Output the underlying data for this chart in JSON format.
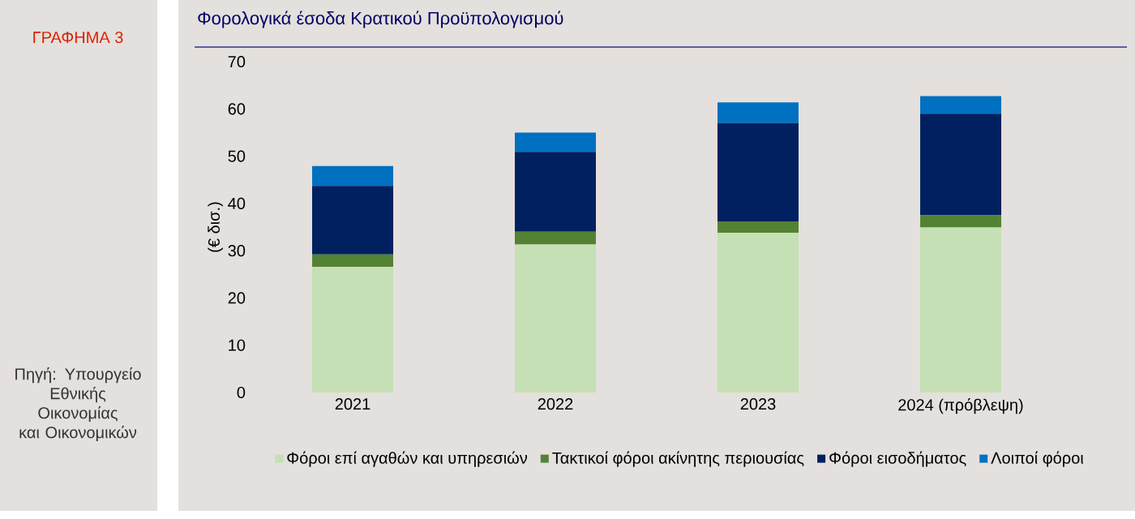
{
  "chart_data": {
    "type": "bar",
    "title": "Φορολογικά έσοδα Κρατικού Προϋπολογισμού",
    "ylabel": "(€ δισ.)",
    "annotations": [
      "ΓΡΑΦΗΜΑ 3",
      "Πηγή: Υπουργείο Εθνικής Οικονομίας και Οικονομικών"
    ],
    "categories": [
      "2021",
      "2022",
      "2023",
      "2024 (πρόβλεψη)"
    ],
    "stacked": true,
    "legend": "bottom",
    "ylim": [
      0,
      70
    ],
    "yticks": [
      0,
      10,
      20,
      30,
      40,
      50,
      60,
      70
    ],
    "series": [
      {
        "name": "Φόροι επί αγαθών και υπηρεσιών",
        "color": "#c5e0b4",
        "values": [
          26.6,
          31.3,
          33.8,
          34.9
        ]
      },
      {
        "name": "Τακτικοί φόροι ακίνητης περιουσίας",
        "color": "#548235",
        "values": [
          2.6,
          2.7,
          2.4,
          2.6
        ]
      },
      {
        "name": "Φόροι εισοδήματος",
        "color": "#002060",
        "values": [
          14.5,
          16.9,
          20.8,
          21.5
        ]
      },
      {
        "name": "Λοιποί φόροι",
        "color": "#0070c0",
        "values": [
          4.2,
          4.1,
          4.4,
          3.7
        ]
      }
    ]
  }
}
